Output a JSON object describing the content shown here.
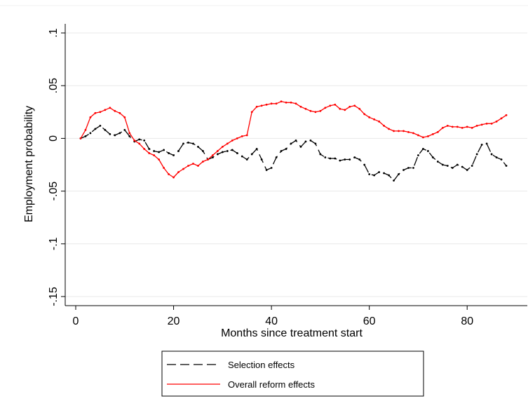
{
  "chart_data": {
    "type": "line",
    "title": "",
    "xlabel": "Months since treatment start",
    "ylabel": "Employment probability",
    "xlim": [
      0,
      90
    ],
    "ylim": [
      -0.15,
      0.1
    ],
    "x_ticks": [
      0,
      20,
      40,
      60,
      80
    ],
    "x_tick_labels": [
      "0",
      "20",
      "40",
      "60",
      "80"
    ],
    "y_ticks": [
      -0.15,
      -0.1,
      -0.05,
      0,
      0.05,
      0.1
    ],
    "y_tick_labels": [
      "-.15",
      "-.1",
      "-.05",
      "0",
      ".05",
      ".1"
    ],
    "grid": "horizontal",
    "legend_position": "bottom",
    "colors": {
      "selection": "#000000",
      "overall": "#ff0000",
      "grid": "#e8e8e8",
      "axis": "#000000"
    },
    "x": [
      1,
      2,
      3,
      4,
      5,
      6,
      7,
      8,
      9,
      10,
      11,
      12,
      13,
      14,
      15,
      16,
      17,
      18,
      19,
      20,
      21,
      22,
      23,
      24,
      25,
      26,
      27,
      28,
      29,
      30,
      31,
      32,
      33,
      34,
      35,
      36,
      37,
      38,
      39,
      40,
      41,
      42,
      43,
      44,
      45,
      46,
      47,
      48,
      49,
      50,
      51,
      52,
      53,
      54,
      55,
      56,
      57,
      58,
      59,
      60,
      61,
      62,
      63,
      64,
      65,
      66,
      67,
      68,
      69,
      70,
      71,
      72,
      73,
      74,
      75,
      76,
      77,
      78,
      79,
      80,
      81,
      82,
      83,
      84,
      85,
      86,
      87,
      88
    ],
    "series": [
      {
        "name": "Selection effects",
        "style": "dashed",
        "values": [
          0,
          0.002,
          0.005,
          0.009,
          0.012,
          0.008,
          0.004,
          0.003,
          0.005,
          0.008,
          0.002,
          -0.003,
          -0.001,
          -0.002,
          -0.01,
          -0.012,
          -0.013,
          -0.011,
          -0.014,
          -0.016,
          -0.012,
          -0.005,
          -0.004,
          -0.005,
          -0.008,
          -0.012,
          -0.02,
          -0.018,
          -0.015,
          -0.013,
          -0.012,
          -0.011,
          -0.014,
          -0.017,
          -0.02,
          -0.015,
          -0.01,
          -0.02,
          -0.03,
          -0.028,
          -0.018,
          -0.012,
          -0.01,
          -0.005,
          -0.002,
          -0.008,
          -0.003,
          -0.002,
          -0.005,
          -0.015,
          -0.018,
          -0.019,
          -0.019,
          -0.021,
          -0.02,
          -0.02,
          -0.018,
          -0.02,
          -0.025,
          -0.034,
          -0.035,
          -0.032,
          -0.033,
          -0.035,
          -0.04,
          -0.034,
          -0.03,
          -0.028,
          -0.028,
          -0.016,
          -0.01,
          -0.012,
          -0.018,
          -0.022,
          -0.025,
          -0.026,
          -0.028,
          -0.025,
          -0.027,
          -0.03,
          -0.026,
          -0.015,
          -0.006,
          -0.005,
          -0.015,
          -0.018,
          -0.02,
          -0.026
        ]
      },
      {
        "name": "Overall reform effects",
        "style": "solid",
        "values": [
          0,
          0.008,
          0.02,
          0.024,
          0.025,
          0.027,
          0.029,
          0.026,
          0.024,
          0.02,
          0.005,
          -0.002,
          -0.005,
          -0.01,
          -0.014,
          -0.016,
          -0.02,
          -0.028,
          -0.034,
          -0.037,
          -0.032,
          -0.029,
          -0.026,
          -0.024,
          -0.026,
          -0.022,
          -0.02,
          -0.016,
          -0.012,
          -0.008,
          -0.005,
          -0.002,
          0,
          0.002,
          0.003,
          0.025,
          0.03,
          0.031,
          0.032,
          0.033,
          0.033,
          0.035,
          0.034,
          0.034,
          0.033,
          0.03,
          0.028,
          0.026,
          0.025,
          0.026,
          0.029,
          0.031,
          0.032,
          0.028,
          0.027,
          0.03,
          0.031,
          0.028,
          0.023,
          0.02,
          0.018,
          0.016,
          0.012,
          0.009,
          0.007,
          0.007,
          0.007,
          0.006,
          0.005,
          0.003,
          0.001,
          0.002,
          0.004,
          0.006,
          0.01,
          0.012,
          0.011,
          0.011,
          0.01,
          0.011,
          0.01,
          0.012,
          0.013,
          0.014,
          0.014,
          0.016,
          0.019,
          0.022
        ]
      }
    ]
  },
  "legend": {
    "items": [
      {
        "label": "Selection effects"
      },
      {
        "label": "Overall reform effects"
      }
    ]
  }
}
